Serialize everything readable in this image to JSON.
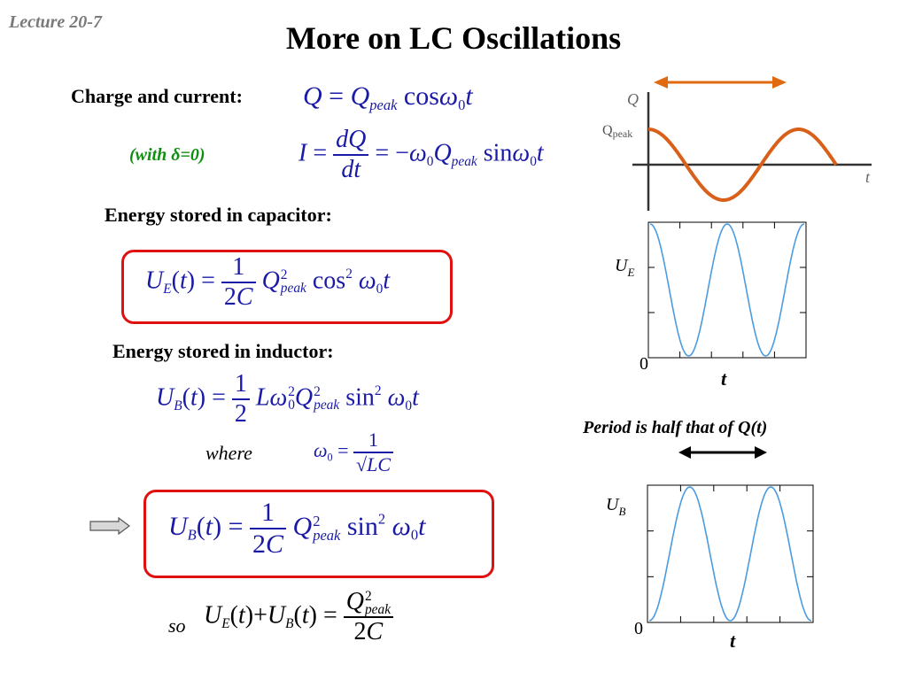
{
  "lecture_label": "Lecture 20-7",
  "title": "More on LC Oscillations",
  "charge_current_heading": "Charge and current:",
  "with_delta": "(with δ=0)",
  "energy_capacitor_heading": "Energy stored in capacitor:",
  "energy_inductor_heading": "Energy stored in inductor:",
  "where_label": "where",
  "so_label": "so",
  "period_caption": "Period is half that of Q(t)",
  "q_graph": {
    "y_label": "Q",
    "peak_label": "Qpeak",
    "x_label": "t"
  },
  "ue_graph": {
    "y_label": "U",
    "y_label_sub": "E",
    "zero_label": "0",
    "x_label": "t"
  },
  "ub_graph": {
    "y_label": "U",
    "y_label_sub": "B",
    "zero_label": "0",
    "x_label": "t"
  },
  "colors": {
    "equation": "#1a1aa6",
    "box": "#e01010",
    "q_curve": "#d9601a",
    "u_curve": "#4a9be0",
    "note": "#109010"
  },
  "icons": [
    "double-arrow-orange",
    "double-arrow-black",
    "right-arrow"
  ]
}
